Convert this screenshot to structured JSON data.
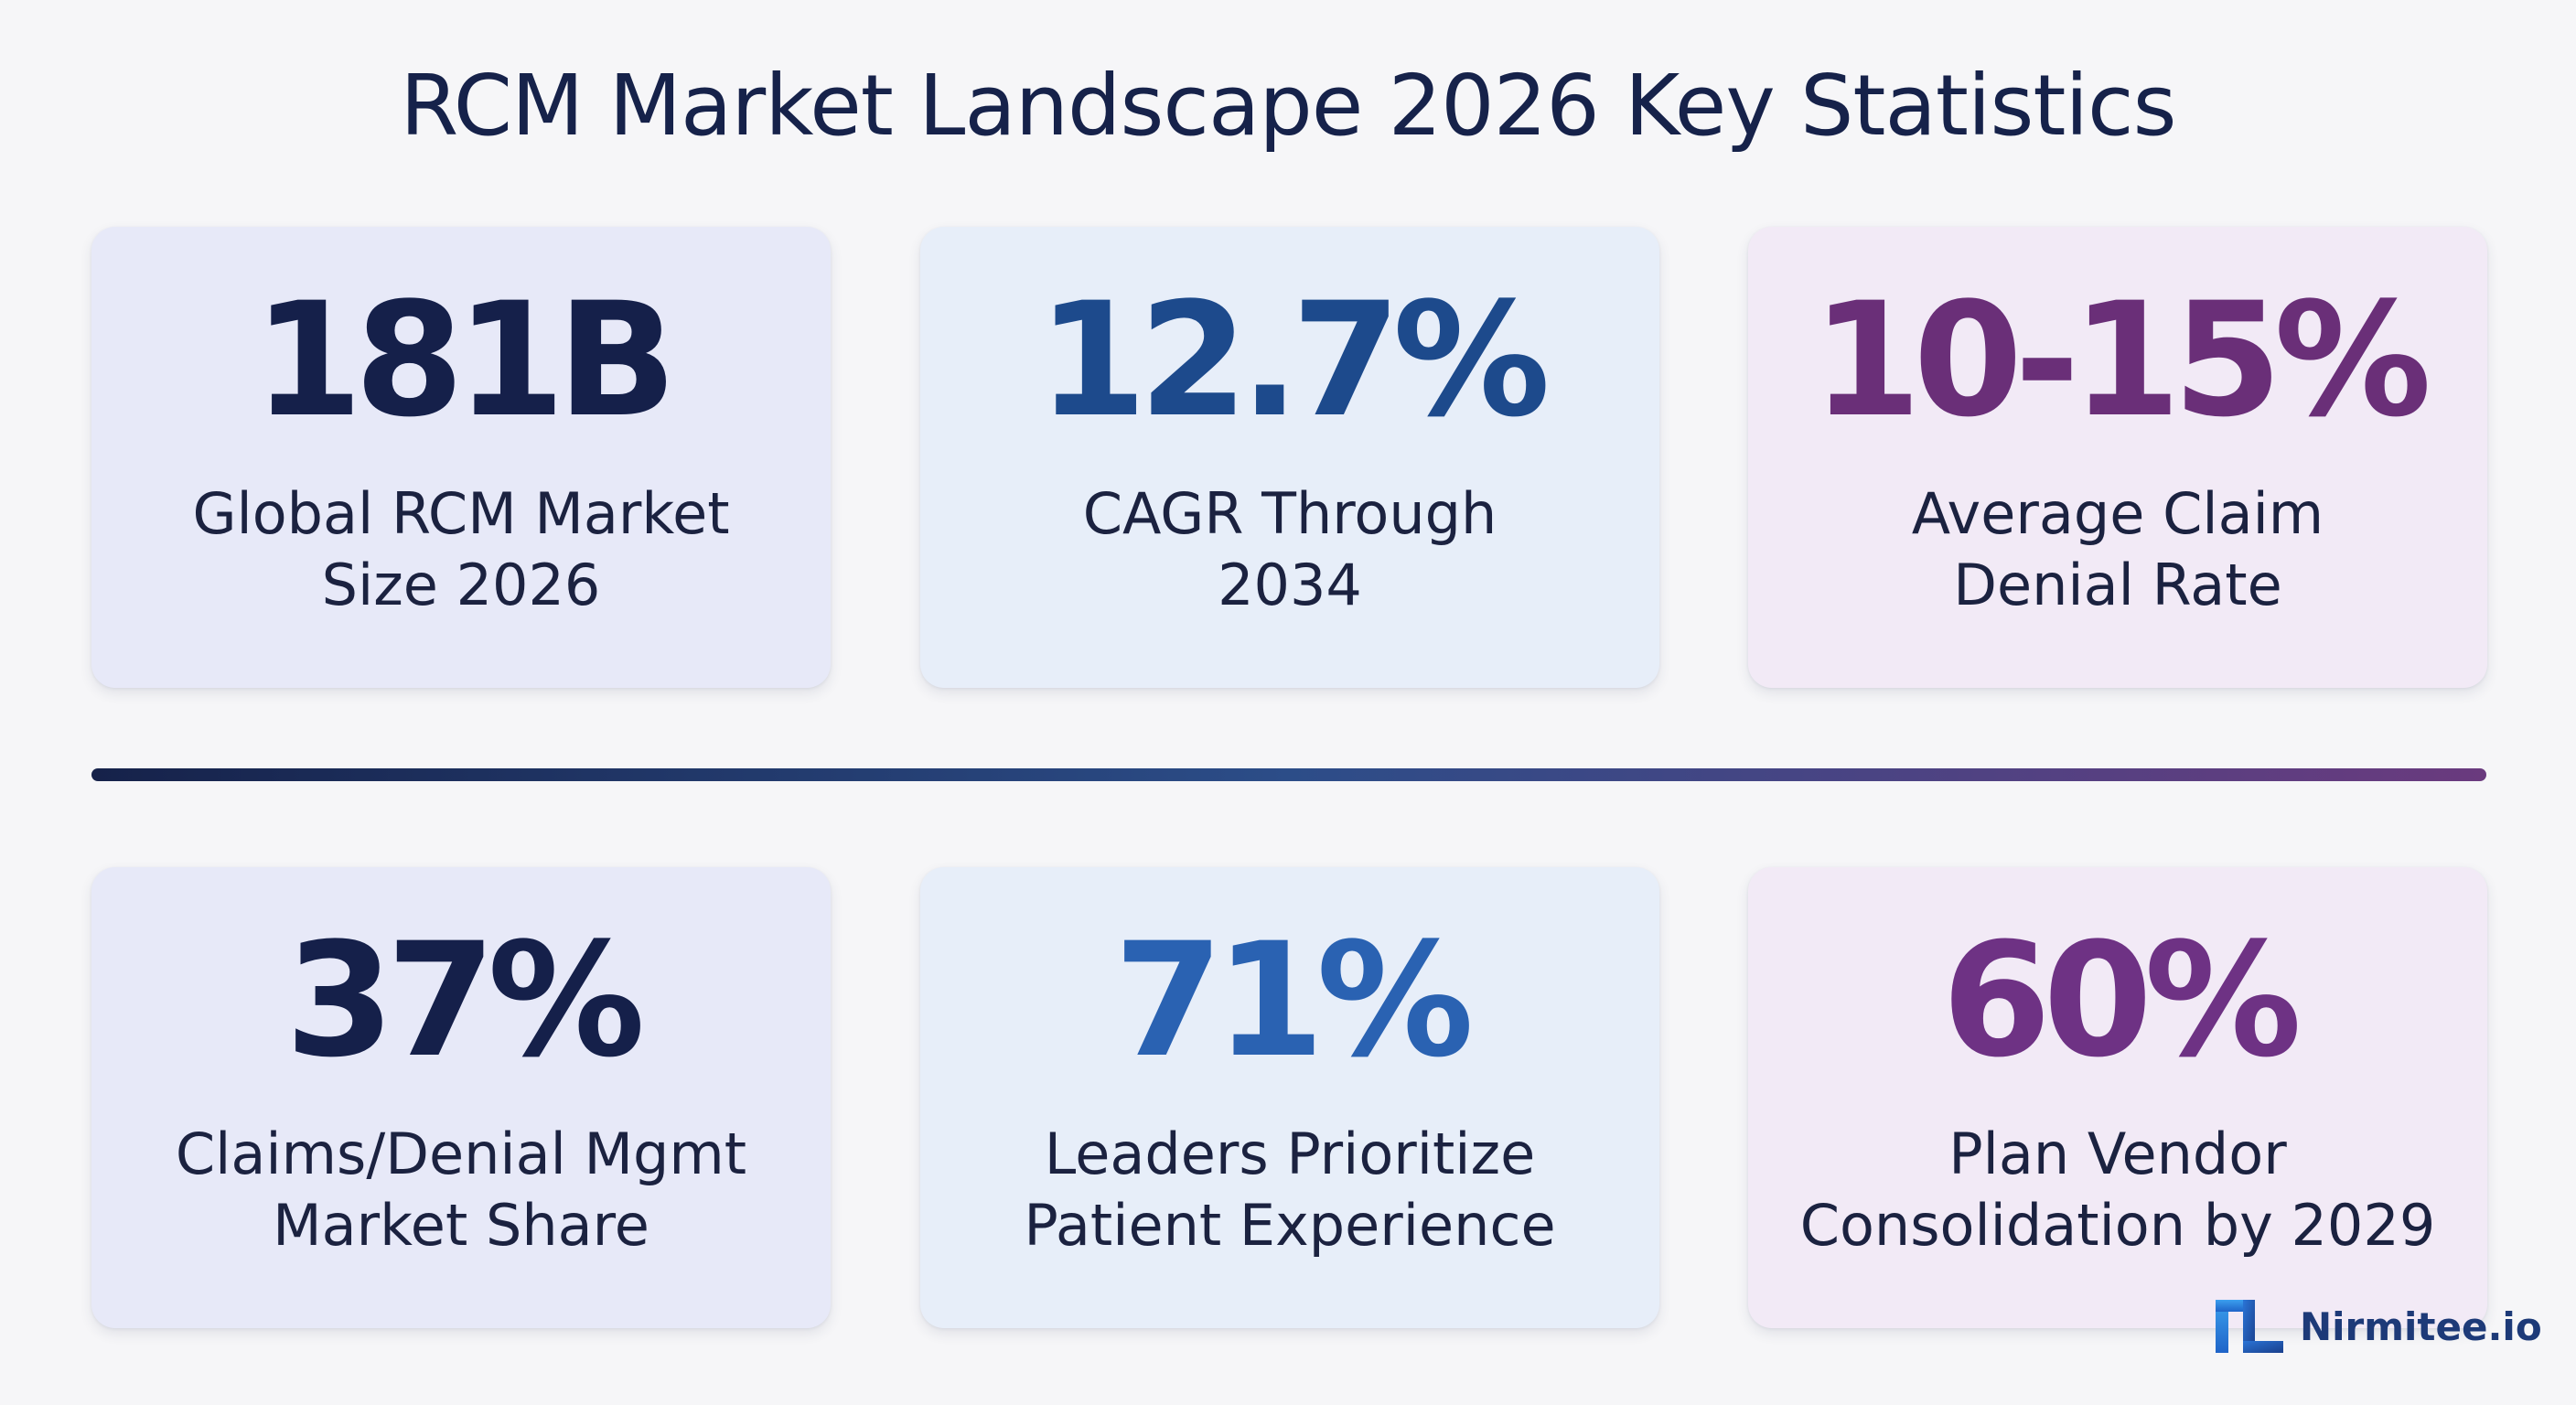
{
  "title": "RCM Market Landscape 2026 Key Statistics",
  "stats": [
    {
      "value": "181B",
      "label_line1": "Global RCM Market",
      "label_line2": "Size 2026",
      "color": "#15204a"
    },
    {
      "value": "12.7%",
      "label_line1": "CAGR Through",
      "label_line2": "2034",
      "color": "#1d4a8c"
    },
    {
      "value": "10-15%",
      "label_line1": "Average Claim",
      "label_line2": "Denial Rate",
      "color": "#6a2f78"
    },
    {
      "value": "37%",
      "label_line1": "Claims/Denial Mgmt",
      "label_line2": "Market Share",
      "color": "#15204a"
    },
    {
      "value": "71%",
      "label_line1": "Leaders Prioritize",
      "label_line2": "Patient Experience",
      "color": "#2a62b2"
    },
    {
      "value": "60%",
      "label_line1": "Plan Vendor",
      "label_line2": "Consolidation by 2029",
      "color": "#6e3284"
    }
  ],
  "brand": {
    "name": "Nirmitee.io",
    "icon": "nirmitee-logo-icon",
    "color": "#1d3a78"
  }
}
